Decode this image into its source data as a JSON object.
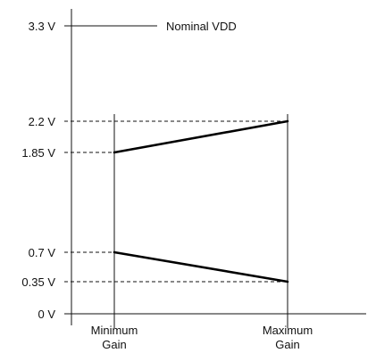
{
  "y_labels": {
    "v33": "3.3 V",
    "v22": "2.2 V",
    "v185": "1.85 V",
    "v07": "0.7 V",
    "v035": "0.35 V",
    "v0": "0 V"
  },
  "annotation": "Nominal VDD",
  "x_labels": {
    "min_line1": "Minimum",
    "min_line2": "Gain",
    "max_line1": "Maximum",
    "max_line2": "Gain"
  },
  "chart_data": {
    "type": "line",
    "x": [
      "Minimum Gain",
      "Maximum Gain"
    ],
    "series": [
      {
        "values": [
          1.85,
          2.2
        ]
      },
      {
        "values": [
          0.7,
          0.35
        ]
      }
    ],
    "reference_lines": [
      {
        "y": 3.3,
        "label": "Nominal VDD"
      }
    ],
    "yticks": [
      0,
      0.35,
      0.7,
      1.85,
      2.2,
      3.3
    ],
    "ylim": [
      0,
      3.3
    ]
  }
}
